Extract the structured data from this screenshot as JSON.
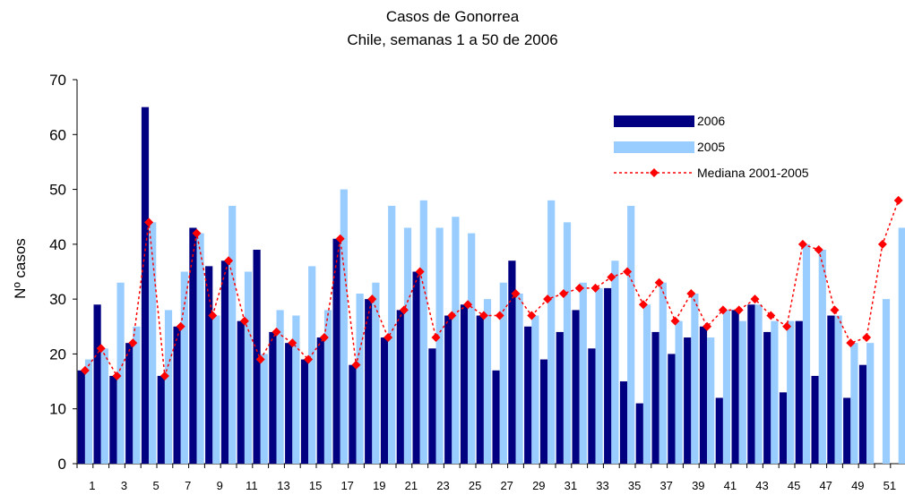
{
  "chart_data": {
    "type": "bar",
    "title": "Casos de Gonorrea",
    "subtitle": "Chile, semanas 1 a 50 de 2006",
    "y_label": "Nº casos",
    "categories": [
      "1",
      null,
      "3",
      null,
      "5",
      null,
      "7",
      null,
      "9",
      null,
      "11",
      null,
      "13",
      null,
      "15",
      null,
      "17",
      null,
      "19",
      null,
      "21",
      null,
      "23",
      null,
      "25",
      null,
      "27",
      null,
      "29",
      null,
      "31",
      null,
      "33",
      null,
      "35",
      null,
      "37",
      null,
      "39",
      null,
      "41",
      null,
      "43",
      null,
      "45",
      null,
      "47",
      null,
      "49",
      null,
      "51",
      null
    ],
    "series": [
      {
        "name": "2006",
        "color": "#000080",
        "type": "bar",
        "values": [
          17,
          29,
          16,
          22,
          65,
          16,
          25,
          43,
          36,
          37,
          26,
          39,
          24,
          22,
          19,
          23,
          41,
          18,
          30,
          23,
          28,
          35,
          21,
          27,
          29,
          27,
          17,
          37,
          25,
          19,
          24,
          28,
          21,
          32,
          15,
          11,
          24,
          20,
          23,
          25,
          12,
          28,
          29,
          24,
          13,
          26,
          16,
          27,
          12,
          18,
          null,
          null
        ]
      },
      {
        "name": "2005",
        "color": "#99ccff",
        "type": "bar",
        "values": [
          19,
          21,
          33,
          25,
          44,
          28,
          35,
          42,
          27,
          47,
          35,
          20,
          28,
          27,
          36,
          28,
          50,
          31,
          33,
          47,
          43,
          48,
          43,
          45,
          42,
          30,
          33,
          31,
          27,
          48,
          44,
          33,
          32,
          37,
          47,
          29,
          33,
          26,
          31,
          23,
          28,
          26,
          29,
          26,
          26,
          40,
          39,
          27,
          22,
          22,
          30,
          43
        ]
      },
      {
        "name": "Mediana 2001-2005",
        "color": "#ff0000",
        "type": "line",
        "values": [
          17,
          21,
          16,
          22,
          44,
          16,
          25,
          42,
          27,
          37,
          26,
          19,
          24,
          22,
          19,
          23,
          41,
          18,
          30,
          23,
          28,
          35,
          23,
          27,
          29,
          27,
          27,
          31,
          27,
          30,
          31,
          32,
          32,
          34,
          35,
          29,
          33,
          26,
          31,
          25,
          28,
          28,
          30,
          27,
          25,
          40,
          39,
          28,
          22,
          23,
          40,
          48
        ]
      }
    ],
    "ylim": [
      0,
      70
    ],
    "yticks": [
      0,
      10,
      20,
      30,
      40,
      50,
      60,
      70
    ]
  }
}
